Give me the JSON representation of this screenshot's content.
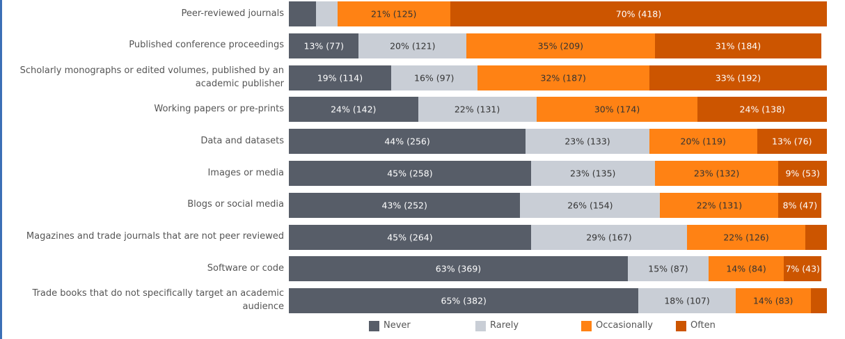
{
  "chart_data": {
    "type": "stacked-bar-horizontal",
    "categories": [
      "Peer-reviewed journals",
      "Published conference proceedings",
      "Scholarly monographs or edited volumes, published by an academic publisher",
      "Working papers or pre-prints",
      "Data and datasets",
      "Images or media",
      "Blogs or social media",
      "Magazines and trade journals that are not peer reviewed",
      "Software or code",
      "Trade books that do not specifically target an academic audience"
    ],
    "xlim": [
      0,
      100
    ],
    "legend": "bottom",
    "series": [
      {
        "name": "Never",
        "color": "#575d68",
        "text_color": "#ffffff",
        "values": [
          5,
          13,
          19,
          24,
          44,
          45,
          43,
          45,
          63,
          65
        ],
        "value_labels": [
          null,
          "13% (77)",
          "19% (114)",
          "24% (142)",
          "44% (256)",
          "45% (258)",
          "43% (252)",
          "45% (264)",
          "63% (369)",
          "65% (382)"
        ]
      },
      {
        "name": "Rarely",
        "color": "#c9ced6",
        "text_color": "#333333",
        "values": [
          4,
          20,
          16,
          22,
          23,
          23,
          26,
          29,
          15,
          18
        ],
        "value_labels": [
          null,
          "20% (121)",
          "16% (97)",
          "22% (131)",
          "23% (133)",
          "23% (135)",
          "26% (154)",
          "29% (167)",
          "15% (87)",
          "18% (107)"
        ]
      },
      {
        "name": "Occasionally",
        "color": "#ff8214",
        "text_color": "#333333",
        "values": [
          21,
          35,
          32,
          30,
          20,
          23,
          22,
          22,
          14,
          14
        ],
        "value_labels": [
          "21% (125)",
          "35% (209)",
          "32% (187)",
          "30% (174)",
          "20% (119)",
          "23% (132)",
          "22% (131)",
          "22% (126)",
          "14% (84)",
          "14% (83)"
        ]
      },
      {
        "name": "Often",
        "color": "#cc5500",
        "text_color": "#ffffff",
        "values": [
          70,
          31,
          33,
          24,
          13,
          9,
          8,
          4,
          7,
          3
        ],
        "value_labels": [
          "70% (418)",
          "31% (184)",
          "33% (192)",
          "24% (138)",
          "13% (76)",
          "9% (53)",
          "8% (47)",
          null,
          "7% (43)",
          null
        ]
      }
    ]
  }
}
